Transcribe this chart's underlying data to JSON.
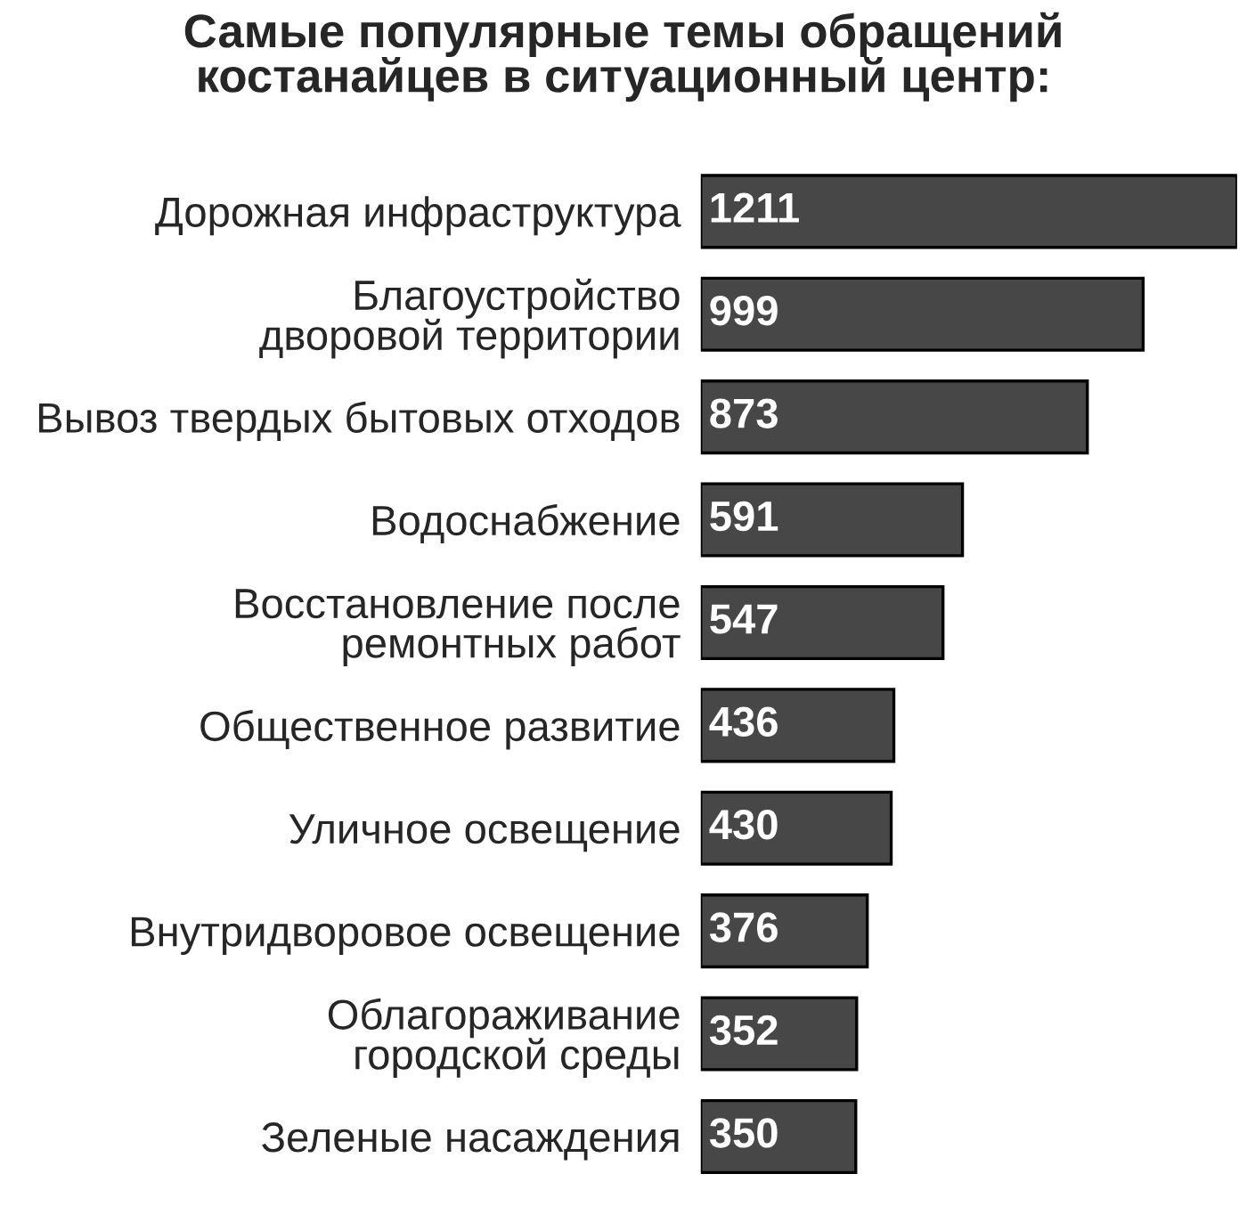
{
  "chart_data": {
    "type": "bar",
    "orientation": "horizontal",
    "title": "Самые популярные темы обращений\nкостанайцев в ситуационный центр:",
    "categories": [
      "Дорожная инфраструктура",
      "Благоустройство\nдворовой территории",
      "Вывоз твердых бытовых отходов",
      "Водоснабжение",
      "Восстановление после\nремонтных работ",
      "Общественное развитие",
      "Уличное освещение",
      "Внутридворовое освещение",
      "Облагораживание\nгородской среды",
      "Зеленые насаждения"
    ],
    "values": [
      1211,
      999,
      873,
      591,
      547,
      436,
      430,
      376,
      352,
      350
    ],
    "color": "#474747",
    "data_labels": true,
    "grid": false,
    "legend": false
  }
}
